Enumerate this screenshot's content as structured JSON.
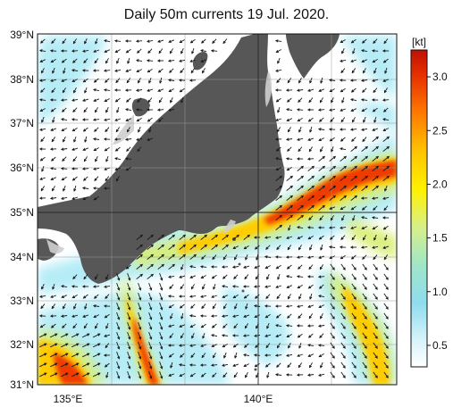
{
  "title": "Daily 50m currents 19 Jul. 2020.",
  "lat_labels": [
    "39°N",
    "38°N",
    "37°N",
    "36°N",
    "35°N",
    "34°N",
    "33°N",
    "32°N",
    "31°N"
  ],
  "lon_labels": [
    "135°E",
    "140°E"
  ],
  "colorbar": {
    "unit": "[kt]",
    "ticks": [
      "0.5",
      "1.0",
      "1.5",
      "2.0",
      "2.5",
      "3.0"
    ],
    "tick_values": [
      0.5,
      1.0,
      1.5,
      2.0,
      2.5,
      3.0
    ],
    "range": [
      0.3,
      3.25
    ]
  },
  "map_extent": {
    "lon_min": 134.3,
    "lon_max": 144.5,
    "lat_min": 31,
    "lat_max": 39
  },
  "colors": {
    "land": "#575757",
    "ocean": "#ffffff",
    "arrow": "#1a1a1a"
  }
}
